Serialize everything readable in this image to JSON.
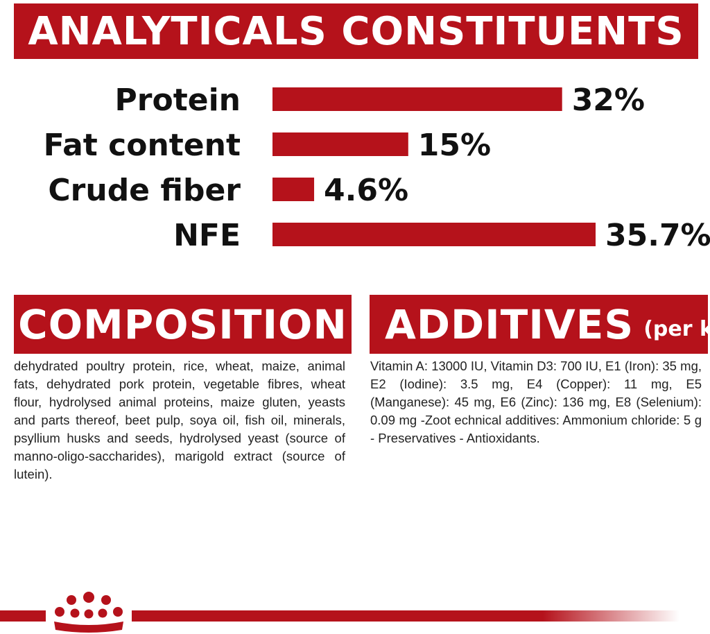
{
  "headings": {
    "analyticals": "ANALYTICALS CONSTITUENTS",
    "composition": "COMPOSITION",
    "additives": "ADDITIVES",
    "additives_unit": "(per kg)"
  },
  "chart_data": {
    "type": "bar",
    "orientation": "horizontal",
    "categories": [
      "Protein",
      "Fat content",
      "Crude fiber",
      "NFE"
    ],
    "values": [
      32,
      15,
      4.6,
      35.7
    ],
    "value_labels": [
      "32%",
      "15%",
      "4.6%",
      "35.7%"
    ],
    "unit": "%",
    "xlim": [
      0,
      35.7
    ],
    "grid": false,
    "bar_color": "#b5121b"
  },
  "composition_text": "dehydrated poultry protein, rice, wheat, maize, animal fats, dehydrated pork protein, vegetable fibres, wheat flour, hydrolysed animal proteins, maize gluten, yeasts and parts thereof, beet pulp, soya oil, fish oil, minerals, psyllium husks and seeds, hydrolysed yeast (source of manno-oligo-saccharides), marigold extract (source of lutein).",
  "additives_text": "Vitamin A: 13000 IU, Vitamin D3: 700 IU, E1 (Iron): 35 mg, E2 (Iodine): 3.5 mg, E4 (Copper): 11 mg, E5 (Manganese): 45 mg, E6 (Zinc): 136 mg, E8 (Selenium): 0.09 mg -Zoot echnical additives: Ammonium chloride: 5 g - Preservatives - Antioxidants.",
  "colors": {
    "brand_red": "#b5121b",
    "text": "#222222"
  },
  "icons": {
    "footer_logo": "royal-crown-icon"
  }
}
